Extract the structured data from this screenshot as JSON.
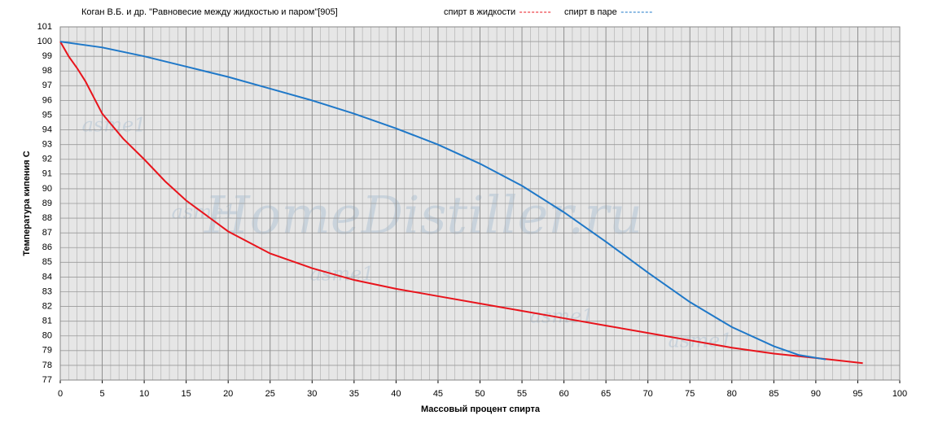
{
  "chart_data": {
    "type": "line",
    "title": "Коган В.Б. и др. \"Равновесие между жидкостью и паром\"[905]",
    "x_label": "Массовый  процент  спирта",
    "y_label": "Температура  кипения  С",
    "watermarks": [
      "HomeDistiller.ru",
      "asme1",
      "asme1",
      "asme1",
      "asme1",
      "asme1"
    ],
    "xlim": [
      0,
      100
    ],
    "xticks": [
      0,
      5,
      10,
      15,
      20,
      25,
      30,
      35,
      40,
      45,
      50,
      55,
      60,
      65,
      70,
      75,
      80,
      85,
      90,
      95,
      100
    ],
    "ylim": [
      77,
      101
    ],
    "yticks": [
      77,
      78,
      79,
      80,
      81,
      82,
      83,
      84,
      85,
      86,
      87,
      88,
      89,
      90,
      91,
      92,
      93,
      94,
      95,
      96,
      97,
      98,
      99,
      100,
      101
    ],
    "grid": true,
    "legend": "top",
    "series": [
      {
        "name": "спирт в жидкости",
        "color": "#e8141c",
        "x": [
          0,
          1,
          2,
          3,
          5,
          7.5,
          10,
          12.5,
          15,
          20,
          25,
          30,
          35,
          40,
          45,
          50,
          55,
          60,
          65,
          70,
          75,
          80,
          85,
          90,
          95.6
        ],
        "values": [
          100,
          99.0,
          98.2,
          97.3,
          95.1,
          93.4,
          92.0,
          90.5,
          89.2,
          87.1,
          85.6,
          84.6,
          83.8,
          83.2,
          82.7,
          82.2,
          81.7,
          81.2,
          80.7,
          80.2,
          79.7,
          79.2,
          78.8,
          78.5,
          78.15
        ]
      },
      {
        "name": "спирт в паре",
        "color": "#1f78c8",
        "x": [
          0,
          5,
          10,
          15,
          20,
          25,
          30,
          35,
          40,
          45,
          50,
          55,
          60,
          65,
          70,
          75,
          80,
          85,
          88,
          91.2
        ],
        "values": [
          100,
          99.6,
          99.0,
          98.3,
          97.6,
          96.8,
          96.0,
          95.1,
          94.1,
          93.0,
          91.7,
          90.2,
          88.4,
          86.4,
          84.3,
          82.3,
          80.6,
          79.3,
          78.7,
          78.4
        ]
      }
    ]
  }
}
